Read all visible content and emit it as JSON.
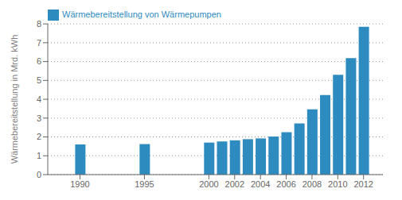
{
  "chart_data": {
    "type": "bar",
    "x": [
      1990,
      1995,
      2000,
      2001,
      2002,
      2003,
      2004,
      2005,
      2006,
      2007,
      2008,
      2009,
      2010,
      2011,
      2012
    ],
    "series": [
      {
        "name": "Wärmebereitstellung von Wärmepumpen",
        "color": "#2e8bc0",
        "values": [
          1.6,
          1.62,
          1.7,
          1.76,
          1.82,
          1.88,
          1.92,
          2.02,
          2.25,
          2.72,
          3.47,
          4.22,
          5.3,
          6.18,
          7.85
        ]
      }
    ],
    "ylabel": "Wärmebereitstellung in Mrd. kWh",
    "xlim": [
      1987.5,
      2013.5
    ],
    "xticks": [
      1990,
      1995,
      2000,
      2002,
      2004,
      2006,
      2008,
      2010,
      2012
    ],
    "ylim": [
      0,
      8
    ],
    "yticks": [
      0,
      1,
      2,
      3,
      4,
      5,
      6,
      7,
      8
    ],
    "grid": true,
    "legend": "upper left"
  }
}
